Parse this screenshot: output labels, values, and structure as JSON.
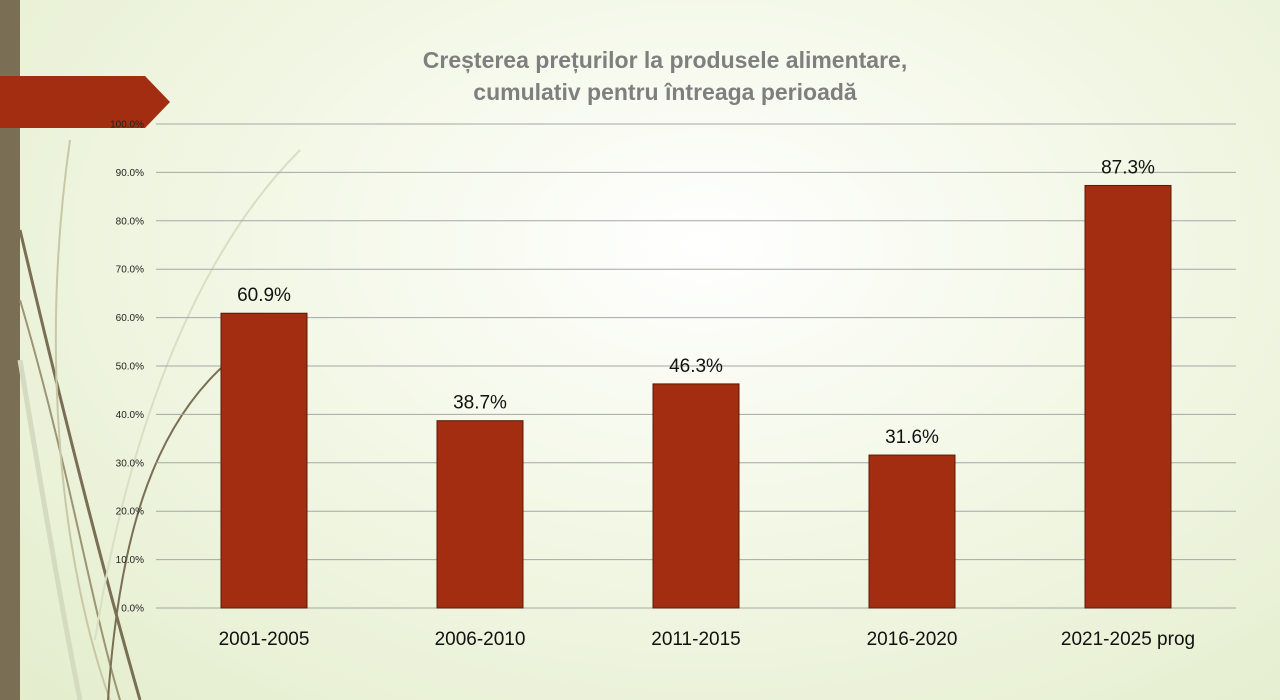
{
  "chart_data": {
    "type": "bar",
    "title_lines": [
      "Creșterea prețurilor la produsele alimentare,",
      "cumulativ pentru întreaga perioadă"
    ],
    "categories": [
      "2001-2005",
      "2006-2010",
      "2011-2015",
      "2016-2020",
      "2021-2025 prog"
    ],
    "values": [
      60.9,
      38.7,
      46.3,
      31.6,
      87.3
    ],
    "value_labels": [
      "60.9%",
      "38.7%",
      "46.3%",
      "31.6%",
      "87.3%"
    ],
    "ylim": [
      0,
      100
    ],
    "yticks": [
      0,
      10,
      20,
      30,
      40,
      50,
      60,
      70,
      80,
      90,
      100
    ],
    "ytick_labels": [
      "0.0%",
      "10.0%",
      "20.0%",
      "30.0%",
      "40.0%",
      "50.0%",
      "60.0%",
      "70.0%",
      "80.0%",
      "90.0%",
      "100.0%"
    ],
    "grid": true,
    "xlabel": "",
    "ylabel": ""
  },
  "colors": {
    "bar": "#a32d10",
    "bar_edge": "#5a1a08",
    "grid": "#a6a6a6",
    "ribbon": "#a32d10",
    "left_bar": "#7a6f55"
  }
}
